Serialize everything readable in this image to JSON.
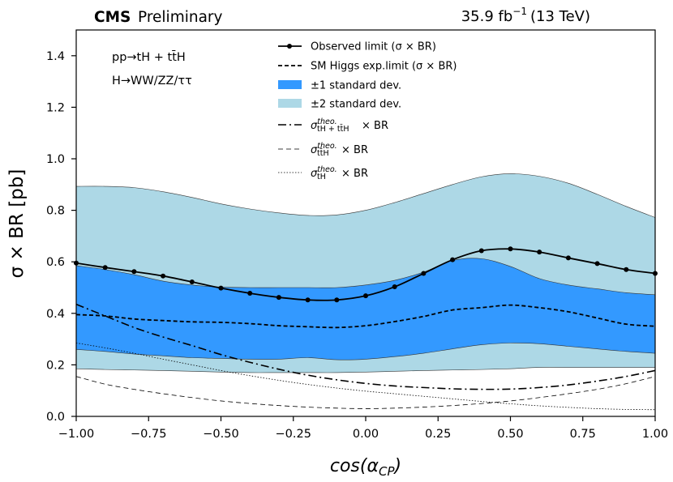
{
  "header": {
    "experiment": "CMS",
    "status": "Preliminary",
    "lumi_prefix": "35.9 fb",
    "lumi_exponent": "−1",
    "energy": "(13 TeV)"
  },
  "annotations": {
    "process": "pp→tH + tt̄H",
    "decay": "H→WW/ZZ/ττ"
  },
  "legend": {
    "observed": "Observed limit (σ × BR)",
    "expected": "SM Higgs exp.limit (σ × BR)",
    "band1": "±1 standard dev.",
    "band2": "±2 standard dev.",
    "theo_sum_main": "σ",
    "theo_sum_sup": "theo.",
    "theo_sum_sub": "tH + tt̄H",
    "theo_sum_tail": "× BR",
    "theo_tth_main": "σ",
    "theo_tth_sup": "theo.",
    "theo_tth_sub": "tt̄H",
    "theo_tth_tail": "× BR",
    "theo_th_main": "σ",
    "theo_th_sup": "theo.",
    "theo_th_sub": "tH",
    "theo_th_tail": "× BR"
  },
  "axes": {
    "ylabel": "σ × BR [pb]",
    "xlabel_main": "cos(α",
    "xlabel_sub": "CP",
    "xlabel_close": ")"
  },
  "colors": {
    "band1": "#3399ff",
    "band2": "#add8e6",
    "observed": "#000000",
    "expected": "#000000"
  },
  "chart_data": {
    "type": "line",
    "xlim": [
      -1.0,
      1.0
    ],
    "ylim": [
      0.0,
      1.5
    ],
    "x_ticks": [
      -1.0,
      -0.75,
      -0.5,
      -0.25,
      0.0,
      0.25,
      0.5,
      0.75,
      1.0
    ],
    "x_tick_labels": [
      "−1.00",
      "−0.75",
      "−0.50",
      "−0.25",
      "0.00",
      "0.25",
      "0.50",
      "0.75",
      "1.00"
    ],
    "y_ticks": [
      0.0,
      0.2,
      0.4,
      0.6,
      0.8,
      1.0,
      1.2,
      1.4
    ],
    "y_tick_labels": [
      "0.0",
      "0.2",
      "0.4",
      "0.6",
      "0.8",
      "1.0",
      "1.2",
      "1.4"
    ],
    "observed": {
      "x": [
        -1.0,
        -0.9,
        -0.8,
        -0.7,
        -0.6,
        -0.5,
        -0.4,
        -0.3,
        -0.2,
        -0.1,
        0.0,
        0.1,
        0.2,
        0.3,
        0.4,
        0.5,
        0.6,
        0.7,
        0.8,
        0.9,
        1.0
      ],
      "y": [
        0.595,
        0.578,
        0.562,
        0.545,
        0.522,
        0.498,
        0.478,
        0.462,
        0.452,
        0.452,
        0.468,
        0.503,
        0.555,
        0.608,
        0.643,
        0.65,
        0.638,
        0.615,
        0.593,
        0.57,
        0.555
      ]
    },
    "expected": {
      "x": [
        -1.0,
        -0.9,
        -0.8,
        -0.7,
        -0.6,
        -0.5,
        -0.4,
        -0.3,
        -0.2,
        -0.1,
        0.0,
        0.1,
        0.2,
        0.3,
        0.4,
        0.5,
        0.6,
        0.7,
        0.8,
        0.9,
        1.0
      ],
      "y": [
        0.395,
        0.39,
        0.378,
        0.372,
        0.367,
        0.365,
        0.36,
        0.352,
        0.348,
        0.345,
        0.352,
        0.368,
        0.388,
        0.413,
        0.422,
        0.432,
        0.422,
        0.406,
        0.382,
        0.358,
        0.35
      ]
    },
    "band_1sigma": {
      "x": [
        -1.0,
        -0.9,
        -0.8,
        -0.7,
        -0.6,
        -0.5,
        -0.4,
        -0.3,
        -0.2,
        -0.1,
        0.0,
        0.1,
        0.2,
        0.3,
        0.4,
        0.5,
        0.6,
        0.7,
        0.8,
        0.9,
        1.0
      ],
      "lower": [
        0.26,
        0.252,
        0.242,
        0.235,
        0.228,
        0.225,
        0.222,
        0.222,
        0.228,
        0.22,
        0.222,
        0.232,
        0.245,
        0.262,
        0.278,
        0.285,
        0.282,
        0.272,
        0.262,
        0.252,
        0.245
      ],
      "upper": [
        0.585,
        0.57,
        0.55,
        0.525,
        0.51,
        0.502,
        0.5,
        0.5,
        0.5,
        0.5,
        0.51,
        0.528,
        0.56,
        0.605,
        0.612,
        0.582,
        0.535,
        0.51,
        0.495,
        0.48,
        0.472
      ]
    },
    "band_2sigma": {
      "x": [
        -1.0,
        -0.9,
        -0.8,
        -0.7,
        -0.6,
        -0.5,
        -0.4,
        -0.3,
        -0.2,
        -0.1,
        0.0,
        0.1,
        0.2,
        0.3,
        0.4,
        0.5,
        0.6,
        0.7,
        0.8,
        0.9,
        1.0
      ],
      "lower": [
        0.185,
        0.182,
        0.18,
        0.178,
        0.175,
        0.172,
        0.17,
        0.17,
        0.17,
        0.17,
        0.172,
        0.175,
        0.178,
        0.18,
        0.182,
        0.185,
        0.19,
        0.19,
        0.19,
        0.19,
        0.19
      ],
      "upper": [
        0.893,
        0.893,
        0.888,
        0.872,
        0.85,
        0.825,
        0.805,
        0.79,
        0.78,
        0.782,
        0.8,
        0.83,
        0.865,
        0.9,
        0.93,
        0.942,
        0.932,
        0.905,
        0.862,
        0.815,
        0.772
      ]
    },
    "theo_tH_plus_ttH": {
      "x": [
        -1.0,
        -0.9,
        -0.8,
        -0.7,
        -0.6,
        -0.5,
        -0.4,
        -0.3,
        -0.2,
        -0.1,
        0.0,
        0.1,
        0.2,
        0.3,
        0.4,
        0.5,
        0.6,
        0.7,
        0.8,
        0.9,
        1.0
      ],
      "y": [
        0.435,
        0.39,
        0.345,
        0.308,
        0.275,
        0.24,
        0.21,
        0.183,
        0.16,
        0.142,
        0.128,
        0.118,
        0.112,
        0.107,
        0.105,
        0.106,
        0.112,
        0.122,
        0.137,
        0.155,
        0.178
      ]
    },
    "theo_ttH": {
      "x": [
        -1.0,
        -0.9,
        -0.8,
        -0.7,
        -0.6,
        -0.5,
        -0.4,
        -0.3,
        -0.2,
        -0.1,
        0.0,
        0.1,
        0.2,
        0.3,
        0.4,
        0.5,
        0.6,
        0.7,
        0.8,
        0.9,
        1.0
      ],
      "y": [
        0.155,
        0.125,
        0.105,
        0.088,
        0.073,
        0.06,
        0.05,
        0.042,
        0.036,
        0.032,
        0.03,
        0.032,
        0.036,
        0.042,
        0.05,
        0.06,
        0.073,
        0.088,
        0.105,
        0.127,
        0.155
      ]
    },
    "theo_tH": {
      "x": [
        -1.0,
        -0.9,
        -0.8,
        -0.7,
        -0.6,
        -0.5,
        -0.4,
        -0.3,
        -0.2,
        -0.1,
        0.0,
        0.1,
        0.2,
        0.3,
        0.4,
        0.5,
        0.6,
        0.7,
        0.8,
        0.9,
        1.0
      ],
      "y": [
        0.285,
        0.266,
        0.245,
        0.222,
        0.2,
        0.178,
        0.158,
        0.14,
        0.124,
        0.11,
        0.098,
        0.088,
        0.078,
        0.068,
        0.058,
        0.049,
        0.041,
        0.035,
        0.03,
        0.027,
        0.026
      ]
    }
  }
}
